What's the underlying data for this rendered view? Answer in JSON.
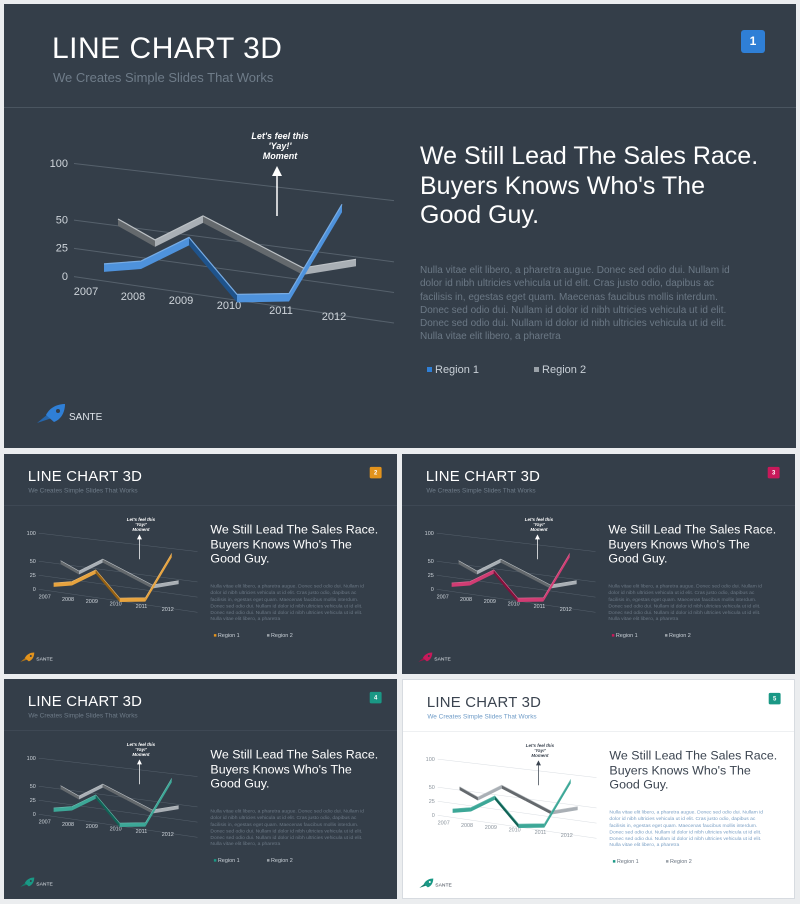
{
  "slides": [
    {
      "page_number": "1",
      "accent_color": "#2f7fd6",
      "theme": "dark"
    },
    {
      "page_number": "2",
      "accent_color": "#e3931c",
      "theme": "dark"
    },
    {
      "page_number": "3",
      "accent_color": "#c8195a",
      "theme": "dark"
    },
    {
      "page_number": "4",
      "accent_color": "#1a9885",
      "theme": "dark"
    },
    {
      "page_number": "5",
      "accent_color": "#1a9885",
      "theme": "light"
    }
  ],
  "content": {
    "title": "LINE CHART 3D",
    "subtitle": "We Creates Simple Slides That Works",
    "heading": "We Still Lead The Sales Race. Buyers Knows Who's The Good Guy.",
    "body": "Nulla vitae elit libero, a pharetra augue. Donec sed odio dui. Nullam id dolor id nibh ultricies vehicula ut id elit. Cras justo odio, dapibus ac facilisis in, egestas eget quam. Maecenas faucibus mollis interdum. Donec sed odio dui. Nullam id dolor id nibh ultricies vehicula ut id elit. Donec sed odio dui. Nullam id dolor id nibh ultricies vehicula ut id elit. Nulla vitae elit libero, a pharetra",
    "annotation": [
      "Let's feel this",
      "'Yay!'",
      "Moment"
    ],
    "brand": "SANTE",
    "icons": {
      "brand": "rocket-icon",
      "annotation": "arrow-up-icon"
    }
  },
  "chart_data": {
    "type": "line",
    "categories": [
      "2007",
      "2008",
      "2009",
      "2010",
      "2011",
      "2012"
    ],
    "series": [
      {
        "name": "Region 1",
        "values": [
          15,
          22,
          48,
          5,
          12,
          92
        ]
      },
      {
        "name": "Region 2",
        "values": [
          56,
          42,
          68,
          52,
          35,
          48
        ]
      }
    ],
    "y_ticks": [
      "0",
      "25",
      "50",
      "100"
    ],
    "ylim": [
      0,
      100
    ],
    "region2_color": "#9aa1a8",
    "grid": true
  }
}
